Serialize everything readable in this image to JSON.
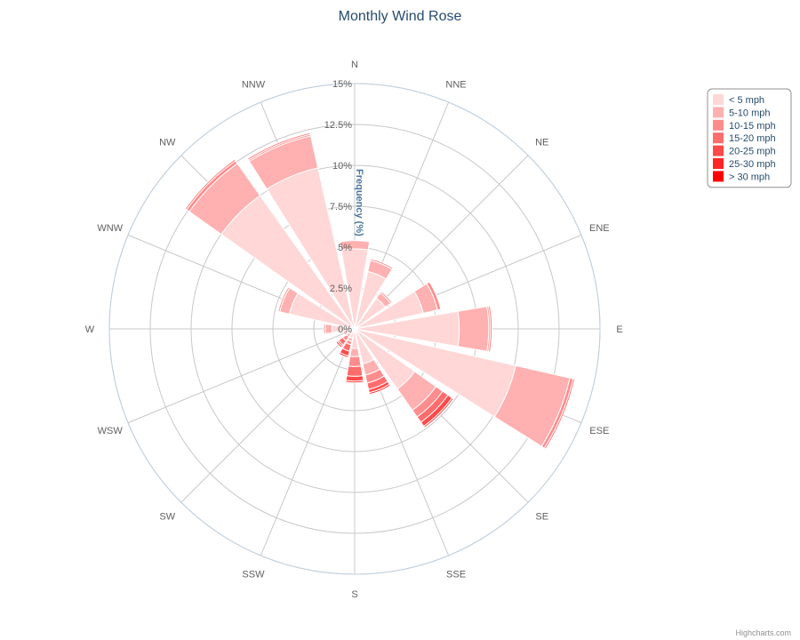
{
  "chart_data": {
    "type": "windrose",
    "title": "Monthly Wind Rose",
    "y_axis_title": "Frequency (%)",
    "y_ticks": [
      "0%",
      "2.5%",
      "5%",
      "7.5%",
      "10%",
      "12.5%",
      "15%"
    ],
    "ylim": [
      0,
      15
    ],
    "stacking": "normal",
    "grid": true,
    "legend_position": "top-right",
    "categories": [
      "N",
      "NNE",
      "NE",
      "ENE",
      "E",
      "ESE",
      "SE",
      "SSE",
      "S",
      "SSW",
      "SW",
      "WSW",
      "W",
      "WNW",
      "NW",
      "NNW"
    ],
    "series": [
      {
        "name": "< 5 mph",
        "color": "#ffd7d7",
        "values": [
          4.9,
          3.6,
          2.3,
          4.3,
          6.4,
          10.1,
          4.5,
          2.2,
          1.2,
          0.6,
          0.4,
          0.4,
          1.4,
          4.1,
          10.0,
          10.1
        ]
      },
      {
        "name": "5-10 mph",
        "color": "#ffb0b0",
        "values": [
          0.5,
          0.7,
          0.4,
          0.9,
          1.8,
          3.4,
          1.6,
          0.7,
          0.5,
          0.2,
          0.2,
          0.1,
          0.4,
          0.6,
          2.4,
          2.0
        ]
      },
      {
        "name": "10-15 mph",
        "color": "#ff8c8c",
        "values": [
          0.0,
          0.1,
          0.1,
          0.2,
          0.1,
          0.2,
          0.5,
          0.5,
          0.6,
          0.2,
          0.3,
          0.1,
          0.1,
          0.1,
          0.2,
          0.1
        ]
      },
      {
        "name": "15-20 mph",
        "color": "#ff6c6c",
        "values": [
          0.0,
          0.0,
          0.0,
          0.0,
          0.1,
          0.1,
          0.4,
          0.4,
          0.6,
          0.4,
          0.3,
          0.1,
          0.0,
          0.0,
          0.1,
          0.1
        ]
      },
      {
        "name": "20-25 mph",
        "color": "#ff4a4a",
        "values": [
          0.0,
          0.0,
          0.0,
          0.0,
          0.0,
          0.0,
          0.3,
          0.2,
          0.3,
          0.3,
          0.1,
          0.0,
          0.0,
          0.0,
          0.0,
          0.0
        ]
      },
      {
        "name": "25-30 mph",
        "color": "#ff2525",
        "values": [
          0.0,
          0.0,
          0.0,
          0.0,
          0.0,
          0.0,
          0.1,
          0.1,
          0.1,
          0.1,
          0.1,
          0.0,
          0.0,
          0.0,
          0.0,
          0.0
        ]
      },
      {
        "name": "> 30 mph",
        "color": "#ff0000",
        "values": [
          0.0,
          0.0,
          0.0,
          0.0,
          0.0,
          0.0,
          0.0,
          0.0,
          0.0,
          0.0,
          0.0,
          0.0,
          0.0,
          0.0,
          0.0,
          0.0
        ]
      }
    ],
    "legend": [
      "< 5 mph",
      "5-10 mph",
      "10-15 mph",
      "15-20 mph",
      "20-25 mph",
      "25-30 mph",
      "> 30 mph"
    ]
  },
  "credits": "Highcharts.com"
}
